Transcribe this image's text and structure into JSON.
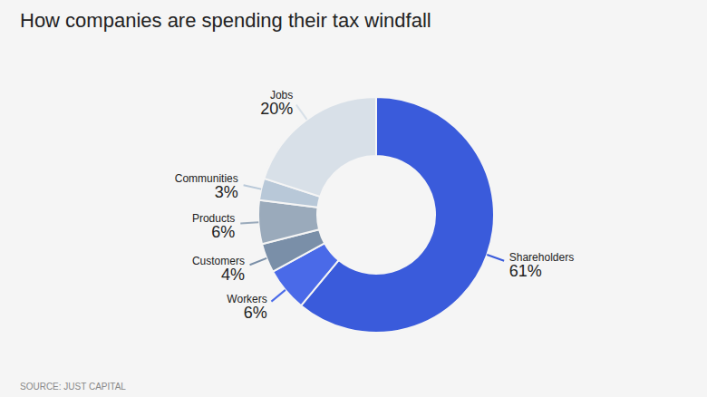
{
  "chart_data": {
    "type": "pie",
    "title": "How companies are spending their tax windfall",
    "annotations": [
      "SOURCE: JUST CAPITAL"
    ],
    "categories": [
      "Shareholders",
      "Workers",
      "Customers",
      "Products",
      "Communities",
      "Jobs"
    ],
    "values": [
      61,
      6,
      4,
      6,
      3,
      20
    ],
    "value_labels": [
      "61%",
      "6%",
      "4%",
      "6%",
      "3%",
      "20%"
    ],
    "colors": [
      "#3A5BDB",
      "#4A6AE8",
      "#7A8FA8",
      "#9AAABB",
      "#B8C8D8",
      "#D8E0E8"
    ],
    "data_labels": true
  }
}
